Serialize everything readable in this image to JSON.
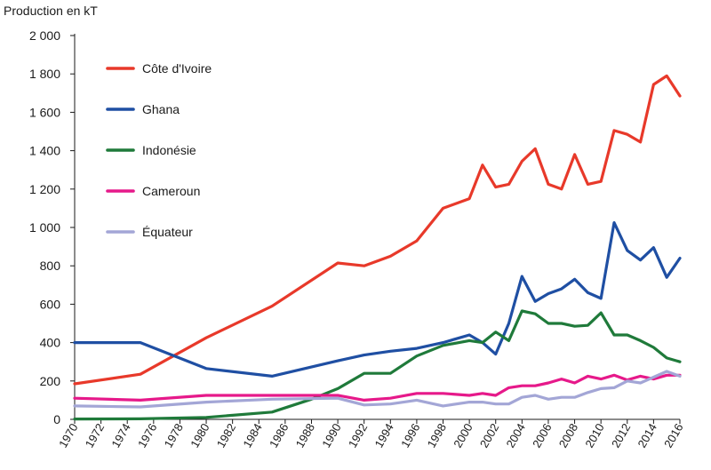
{
  "chart_data": {
    "type": "line",
    "title": "",
    "ylabel": "Production en kT",
    "xlabel": "",
    "ylim": [
      0,
      2000
    ],
    "yticks": [
      0,
      200,
      400,
      600,
      800,
      1000,
      1200,
      1400,
      1600,
      1800,
      2000
    ],
    "ytick_labels": [
      "0",
      "200",
      "400",
      "600",
      "800",
      "1 000",
      "1 200",
      "1 400",
      "1 600",
      "1 800",
      "2 000"
    ],
    "xlim": [
      1970,
      2016
    ],
    "xticks": [
      1970,
      1972,
      1974,
      1976,
      1978,
      1980,
      1982,
      1984,
      1986,
      1988,
      1990,
      1992,
      1994,
      1996,
      1998,
      2000,
      2002,
      2004,
      2006,
      2008,
      2010,
      2012,
      2014,
      2016
    ],
    "grid": false,
    "legend_position": "top-left",
    "series": [
      {
        "name": "Côte d'Ivoire",
        "color": "#e8392a",
        "points": [
          [
            1970,
            185
          ],
          [
            1975,
            235
          ],
          [
            1980,
            425
          ],
          [
            1985,
            590
          ],
          [
            1990,
            815
          ],
          [
            1992,
            800
          ],
          [
            1994,
            850
          ],
          [
            1996,
            930
          ],
          [
            1998,
            1100
          ],
          [
            2000,
            1150
          ],
          [
            2001,
            1325
          ],
          [
            2002,
            1210
          ],
          [
            2003,
            1225
          ],
          [
            2004,
            1345
          ],
          [
            2005,
            1410
          ],
          [
            2006,
            1225
          ],
          [
            2007,
            1200
          ],
          [
            2008,
            1380
          ],
          [
            2009,
            1225
          ],
          [
            2010,
            1240
          ],
          [
            2011,
            1505
          ],
          [
            2012,
            1485
          ],
          [
            2013,
            1445
          ],
          [
            2014,
            1745
          ],
          [
            2015,
            1790
          ],
          [
            2016,
            1685
          ]
        ]
      },
      {
        "name": "Ghana",
        "color": "#1f4fa3",
        "points": [
          [
            1970,
            400
          ],
          [
            1975,
            400
          ],
          [
            1980,
            265
          ],
          [
            1985,
            225
          ],
          [
            1990,
            305
          ],
          [
            1992,
            335
          ],
          [
            1994,
            355
          ],
          [
            1996,
            370
          ],
          [
            1998,
            400
          ],
          [
            2000,
            440
          ],
          [
            2001,
            400
          ],
          [
            2002,
            340
          ],
          [
            2003,
            500
          ],
          [
            2004,
            745
          ],
          [
            2005,
            615
          ],
          [
            2006,
            655
          ],
          [
            2007,
            680
          ],
          [
            2008,
            730
          ],
          [
            2009,
            660
          ],
          [
            2010,
            630
          ],
          [
            2011,
            1025
          ],
          [
            2012,
            880
          ],
          [
            2013,
            830
          ],
          [
            2014,
            895
          ],
          [
            2015,
            740
          ],
          [
            2016,
            840
          ]
        ]
      },
      {
        "name": "Indonésie",
        "color": "#1f7a3a",
        "points": [
          [
            1970,
            2
          ],
          [
            1975,
            3
          ],
          [
            1980,
            10
          ],
          [
            1985,
            38
          ],
          [
            1988,
            105
          ],
          [
            1990,
            160
          ],
          [
            1992,
            240
          ],
          [
            1994,
            240
          ],
          [
            1996,
            330
          ],
          [
            1998,
            385
          ],
          [
            2000,
            410
          ],
          [
            2001,
            400
          ],
          [
            2002,
            455
          ],
          [
            2003,
            410
          ],
          [
            2004,
            565
          ],
          [
            2005,
            550
          ],
          [
            2006,
            500
          ],
          [
            2007,
            500
          ],
          [
            2008,
            485
          ],
          [
            2009,
            490
          ],
          [
            2010,
            555
          ],
          [
            2011,
            440
          ],
          [
            2012,
            440
          ],
          [
            2013,
            410
          ],
          [
            2014,
            375
          ],
          [
            2015,
            320
          ],
          [
            2016,
            300
          ]
        ]
      },
      {
        "name": "Cameroun",
        "color": "#e6198a",
        "points": [
          [
            1970,
            110
          ],
          [
            1975,
            100
          ],
          [
            1980,
            125
          ],
          [
            1985,
            125
          ],
          [
            1990,
            125
          ],
          [
            1992,
            100
          ],
          [
            1994,
            110
          ],
          [
            1996,
            135
          ],
          [
            1998,
            135
          ],
          [
            2000,
            125
          ],
          [
            2001,
            135
          ],
          [
            2002,
            125
          ],
          [
            2003,
            165
          ],
          [
            2004,
            175
          ],
          [
            2005,
            175
          ],
          [
            2006,
            190
          ],
          [
            2007,
            210
          ],
          [
            2008,
            190
          ],
          [
            2009,
            225
          ],
          [
            2010,
            210
          ],
          [
            2011,
            230
          ],
          [
            2012,
            205
          ],
          [
            2013,
            225
          ],
          [
            2014,
            210
          ],
          [
            2015,
            230
          ],
          [
            2016,
            230
          ]
        ]
      },
      {
        "name": "Équateur",
        "color": "#a3a6d6",
        "points": [
          [
            1970,
            70
          ],
          [
            1975,
            65
          ],
          [
            1980,
            90
          ],
          [
            1985,
            105
          ],
          [
            1990,
            110
          ],
          [
            1992,
            75
          ],
          [
            1994,
            80
          ],
          [
            1996,
            100
          ],
          [
            1998,
            70
          ],
          [
            2000,
            90
          ],
          [
            2001,
            90
          ],
          [
            2002,
            80
          ],
          [
            2003,
            80
          ],
          [
            2004,
            115
          ],
          [
            2005,
            125
          ],
          [
            2006,
            105
          ],
          [
            2007,
            115
          ],
          [
            2008,
            115
          ],
          [
            2009,
            140
          ],
          [
            2010,
            160
          ],
          [
            2011,
            165
          ],
          [
            2012,
            200
          ],
          [
            2013,
            190
          ],
          [
            2014,
            220
          ],
          [
            2015,
            250
          ],
          [
            2016,
            225
          ]
        ]
      }
    ]
  }
}
